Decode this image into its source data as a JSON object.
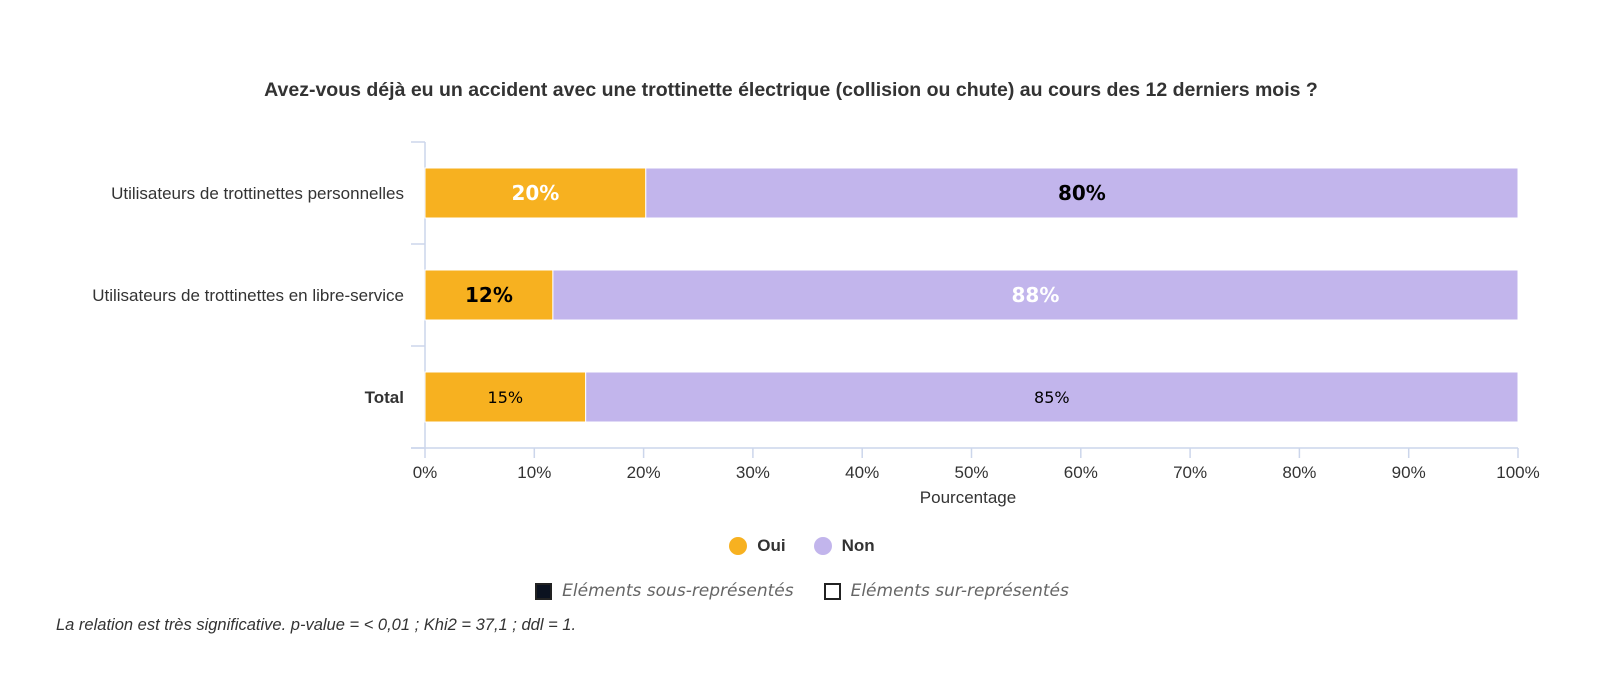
{
  "chart_data": {
    "type": "bar",
    "orientation": "horizontal",
    "stacked": true,
    "title": "Avez-vous déjà eu un accident avec une trottinette électrique (collision ou chute) au cours des 12 derniers mois ?",
    "categories": [
      "Utilisateurs de trottinettes personnelles",
      "Utilisateurs de trottinettes en libre-service",
      "Total"
    ],
    "series": [
      {
        "name": "Oui",
        "color": "#f7b120",
        "values": [
          20.2,
          11.7,
          14.7
        ],
        "labels": [
          "20%",
          "12%",
          "15%"
        ],
        "label_styles": [
          "bold-white",
          "bold-black",
          "normal-black"
        ]
      },
      {
        "name": "Non",
        "color": "#c2b5ec",
        "values": [
          79.8,
          88.3,
          85.3
        ],
        "labels": [
          "80%",
          "88%",
          "85%"
        ],
        "label_styles": [
          "bold-black",
          "bold-white",
          "normal-black"
        ]
      }
    ],
    "xlabel": "Pourcentage",
    "xlim": [
      0,
      100
    ],
    "xticks": [
      "0%",
      "10%",
      "20%",
      "30%",
      "40%",
      "50%",
      "60%",
      "70%",
      "80%",
      "90%",
      "100%"
    ],
    "legend_position": "bottom-center",
    "grid": false
  },
  "legend": {
    "oui": "Oui",
    "non": "Non",
    "oui_color": "#f7b120",
    "non_color": "#c2b5ec"
  },
  "representation": {
    "under": "Eléments sous-représentés",
    "over": "Eléments sur-représentés"
  },
  "footnote": "La relation est très significative. p-value = < 0,01 ; Khi2 = 37,1 ; ddl = 1."
}
